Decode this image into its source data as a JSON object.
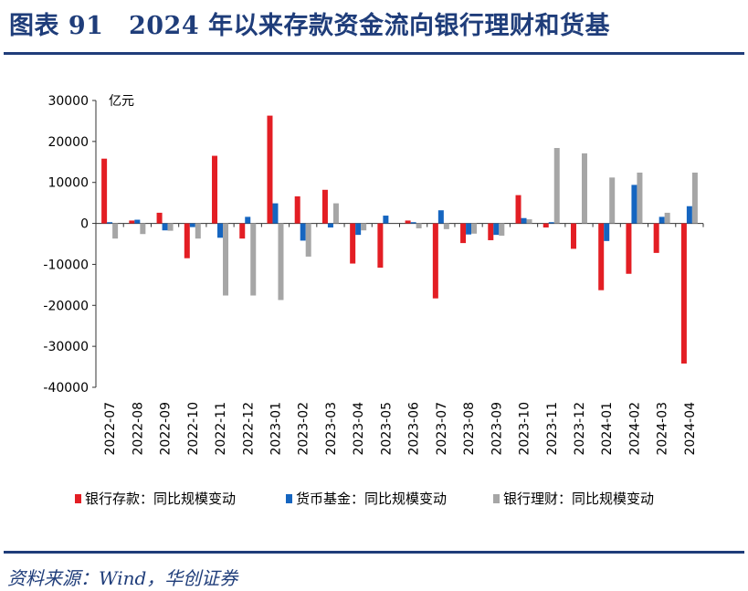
{
  "figure": {
    "title": "图表 91　2024 年以来存款资金流向银行理财和货基",
    "source": "资料来源：Wind，华创证券"
  },
  "colors": {
    "deposit": "#e31e24",
    "mmf": "#1565c0",
    "wmp": "#a6a6a6",
    "frame": "#1f3d7a",
    "axis": "#333333"
  },
  "chart_data": {
    "type": "bar",
    "unit_label": "亿元",
    "ylim": [
      -40000,
      30000
    ],
    "yticks": [
      30000,
      20000,
      10000,
      0,
      -10000,
      -20000,
      -30000,
      -40000
    ],
    "categories": [
      "2022-07",
      "2022-08",
      "2022-09",
      "2022-10",
      "2022-11",
      "2022-12",
      "2023-01",
      "2023-02",
      "2023-03",
      "2023-04",
      "2023-05",
      "2023-06",
      "2023-07",
      "2023-08",
      "2023-09",
      "2023-10",
      "2023-11",
      "2023-12",
      "2024-01",
      "2024-02",
      "2024-03",
      "2024-04"
    ],
    "series": [
      {
        "name": "银行存款：同比规模变动",
        "color_key": "deposit",
        "values": [
          15800,
          700,
          2600,
          -8500,
          16500,
          -3700,
          26300,
          6600,
          8200,
          -9800,
          -10800,
          700,
          -18300,
          -4800,
          -4100,
          6900,
          -1000,
          -6200,
          -16300,
          -12300,
          -7200,
          -34200
        ]
      },
      {
        "name": "货币基金：同比规模变动",
        "color_key": "mmf",
        "values": [
          300,
          900,
          -1700,
          -900,
          -3500,
          1600,
          4900,
          -4200,
          -1000,
          -2800,
          1900,
          300,
          3200,
          -2700,
          -2800,
          1300,
          300,
          0,
          -4300,
          9400,
          1600,
          4200
        ]
      },
      {
        "name": "银行理财：同比规模变动",
        "color_key": "wmp",
        "values": [
          -3700,
          -2600,
          -1800,
          -3700,
          -17600,
          -17600,
          -18700,
          -8100,
          4900,
          -1700,
          0,
          -1200,
          -1400,
          -2500,
          -3000,
          1000,
          18400,
          17100,
          11200,
          12400,
          2600,
          12400
        ]
      }
    ],
    "legend_position": "bottom",
    "grid": false
  }
}
